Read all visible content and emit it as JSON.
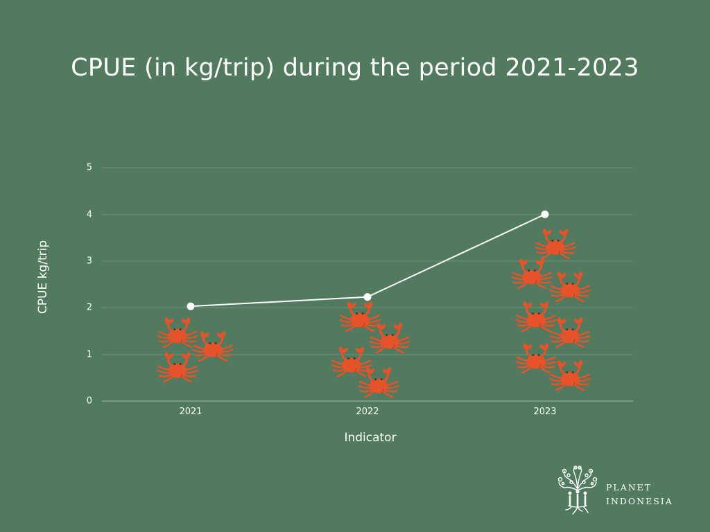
{
  "title": "CPUE (in kg/trip) during the period 2021-2023",
  "colors": {
    "background": "#517A5E",
    "gridline": "#6E9379",
    "axis_line": "#A9C0AF",
    "line": "#FFFFFF",
    "crab": "#E4532A",
    "crab_eye": "#2E3A2A",
    "text": "#FFFFFF"
  },
  "axes": {
    "ylabel": "CPUE kg/trip",
    "xlabel": "Indicator",
    "yticks": [
      "0",
      "1",
      "2",
      "3",
      "4",
      "5"
    ],
    "xticks": [
      "2021",
      "2022",
      "2023"
    ]
  },
  "chart_data": {
    "type": "line",
    "title": "CPUE (in kg/trip) during the period 2021-2023",
    "xlabel": "Indicator",
    "ylabel": "CPUE kg/trip",
    "categories": [
      "2021",
      "2022",
      "2023"
    ],
    "series": [
      {
        "name": "CPUE (kg/trip)",
        "values": [
          2.03,
          2.23,
          4.0
        ]
      }
    ],
    "ylim": [
      0,
      5
    ],
    "yticks": [
      0,
      1,
      2,
      3,
      4,
      5
    ],
    "grid": true,
    "legend": "none",
    "annotations": [
      {
        "type": "pictogram",
        "icon": "crab-icon",
        "category": "2021",
        "count": 3
      },
      {
        "type": "pictogram",
        "icon": "crab-icon",
        "category": "2022",
        "count": 4
      },
      {
        "type": "pictogram",
        "icon": "crab-icon",
        "category": "2023",
        "count": 7
      }
    ]
  },
  "crabs": {
    "2021": [
      [
        256,
        483
      ],
      [
        307,
        503
      ],
      [
        256,
        533
      ]
    ],
    "2022": [
      [
        519,
        460
      ],
      [
        562,
        491
      ],
      [
        507,
        525
      ],
      [
        546,
        555
      ]
    ],
    "2023": [
      [
        801,
        355
      ],
      [
        767,
        398
      ],
      [
        822,
        417
      ],
      [
        773,
        460
      ],
      [
        822,
        483
      ],
      [
        773,
        520
      ],
      [
        822,
        545
      ]
    ]
  },
  "logo": {
    "line1": "PLANET",
    "line2": "INDONESIA"
  }
}
